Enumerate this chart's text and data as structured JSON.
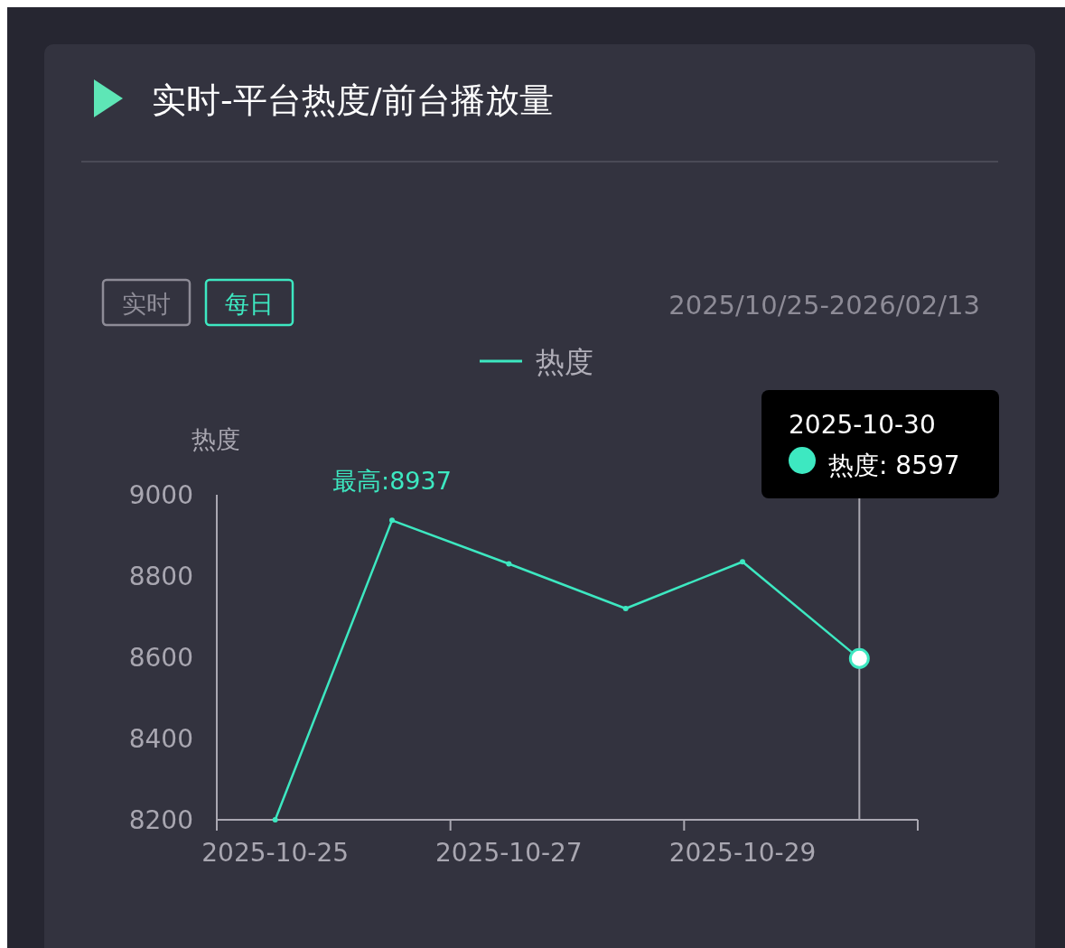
{
  "chart_data": {
    "type": "line",
    "title": "实时-平台热度/前台播放量",
    "ylabel": "热度",
    "categories": [
      "2025-10-25",
      null,
      "2025-10-27",
      null,
      "2025-10-29",
      null
    ],
    "series": [
      {
        "name": "热度",
        "color": "#3de8c1",
        "values": [
          8200,
          8937,
          8830,
          8720,
          8835,
          8597
        ]
      }
    ],
    "ylim": [
      8200,
      9000
    ],
    "yticks": [
      8200,
      8400,
      8600,
      8800,
      9000
    ],
    "annotations": [
      {
        "text": "最高:8937",
        "y": 8937
      },
      "实时",
      "每日",
      "2025/10/25-2026/02/13",
      "2025-10-30",
      "热度: 8597"
    ],
    "legend": "top",
    "marker": "circle"
  }
}
